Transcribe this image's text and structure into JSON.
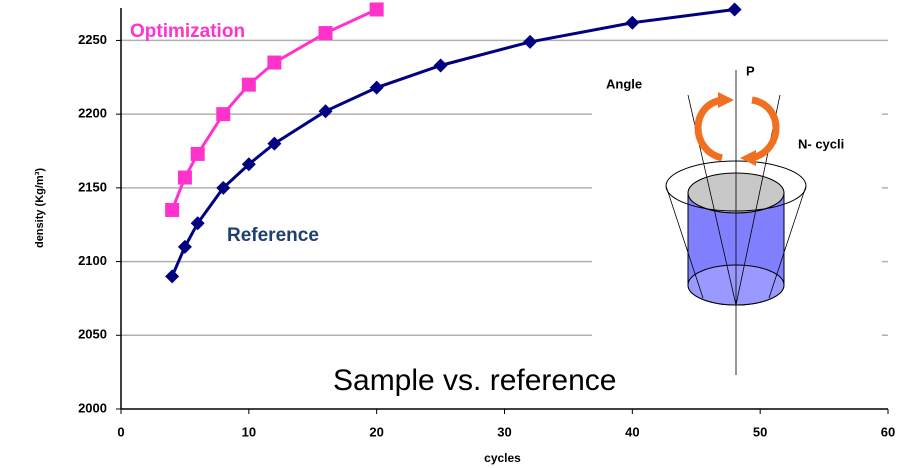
{
  "chart_data": {
    "type": "line",
    "title": "Sample vs. reference",
    "x_label": "cycles",
    "y_label": "density (Kg/m³)",
    "series": [
      {
        "name": "Optimization",
        "color": "#ff33cc",
        "marker": "square",
        "x": [
          4,
          5,
          6,
          8,
          10,
          12,
          16,
          20
        ],
        "values": [
          2135,
          2157,
          2173,
          2200,
          2220,
          2235,
          2255,
          2271
        ]
      },
      {
        "name": "Reference",
        "color": "#000080",
        "marker": "diamond",
        "x": [
          4,
          5,
          6,
          8,
          10,
          12,
          16,
          20,
          25,
          32,
          40,
          48
        ],
        "values": [
          2090,
          2110,
          2126,
          2150,
          2166,
          2180,
          2202,
          2218,
          2233,
          2249,
          2262,
          2271
        ]
      }
    ],
    "xlim": [
      0,
      60
    ],
    "xticks": [
      0,
      10,
      20,
      30,
      40,
      50,
      60
    ],
    "ylim": [
      2000,
      2272
    ],
    "yticks": [
      2000,
      2050,
      2100,
      2150,
      2200,
      2250
    ],
    "grid": true,
    "diagram_labels": [
      "Angle",
      "P",
      "N- cycli"
    ]
  }
}
